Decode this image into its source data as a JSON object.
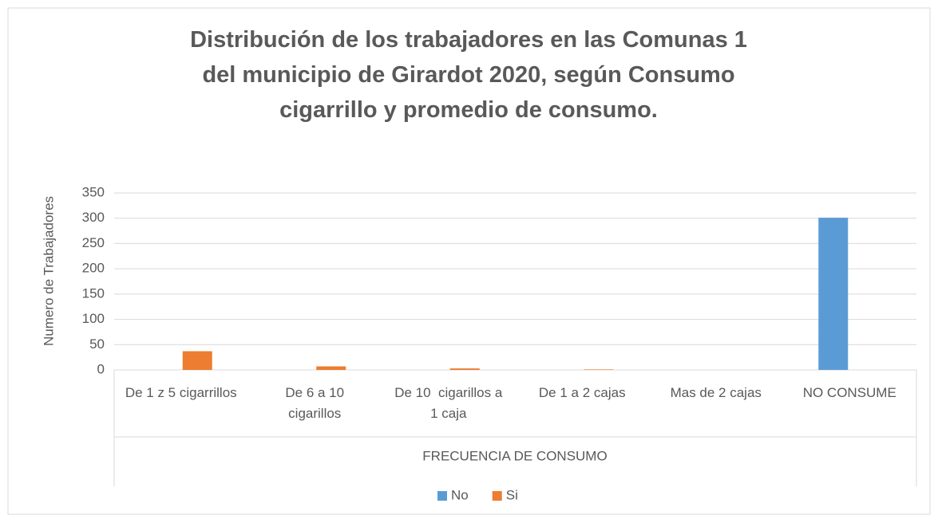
{
  "chart_data": {
    "type": "bar",
    "title": "Distribución  de los trabajadores en las Comunas 1 del municipio de Girardot 2020, según Consumo cigarrillo y promedio de consumo.",
    "x_label": "FRECUENCIA DE CONSUMO",
    "y_label": "Numero de Trabajadores",
    "categories": [
      "De 1 z 5 cigarrillos",
      "De 6 a 10 cigarillos",
      "De 10  cigarillos a 1 caja",
      "De 1 a 2 cajas",
      "Mas de 2 cajas",
      "NO CONSUME"
    ],
    "series": [
      {
        "name": "No",
        "color": "#5b9bd5",
        "values": [
          0,
          0,
          0,
          0,
          0,
          301
        ]
      },
      {
        "name": "Si",
        "color": "#ed7d31",
        "values": [
          37,
          7,
          3,
          1,
          0,
          0
        ]
      }
    ],
    "ylim": [
      0,
      350
    ],
    "yticks": [
      0,
      50,
      100,
      150,
      200,
      250,
      300,
      350
    ],
    "grid": true,
    "legend": "bottom"
  }
}
